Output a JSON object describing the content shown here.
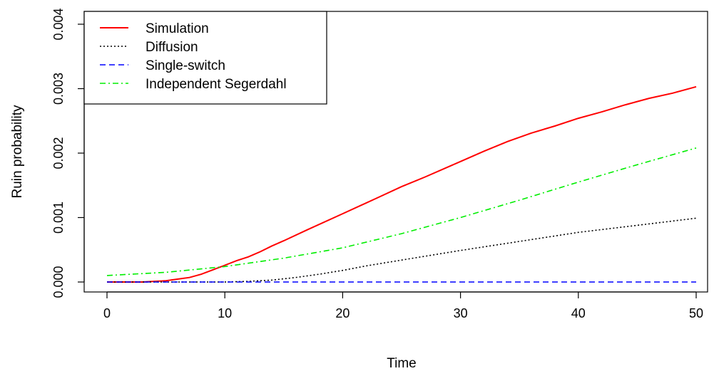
{
  "chart_data": {
    "type": "line",
    "title": "",
    "xlabel": "Time",
    "ylabel": "Ruin probability",
    "xlim": [
      0,
      50
    ],
    "ylim": [
      0,
      0.004
    ],
    "xticks": [
      0,
      10,
      20,
      30,
      40,
      50
    ],
    "xtick_labels": [
      "0",
      "10",
      "20",
      "30",
      "40",
      "50"
    ],
    "yticks": [
      0,
      0.001,
      0.002,
      0.003,
      0.004
    ],
    "ytick_labels": [
      "0.000",
      "0.001",
      "0.002",
      "0.003",
      "0.004"
    ],
    "grid": false,
    "legend_position": "top-left",
    "series": [
      {
        "name": "Simulation",
        "color": "#ff0000",
        "dash": "solid",
        "x": [
          0,
          3,
          5,
          7,
          8,
          9,
          10,
          11,
          12,
          13,
          14,
          15,
          17,
          20,
          23,
          25,
          27,
          30,
          32,
          34,
          36,
          38,
          40,
          42,
          44,
          46,
          48,
          50
        ],
        "y": [
          0,
          0,
          2e-05,
          7e-05,
          0.00012,
          0.00019,
          0.00026,
          0.00033,
          0.00039,
          0.00047,
          0.00056,
          0.00064,
          0.00081,
          0.00106,
          0.00131,
          0.00148,
          0.00163,
          0.00187,
          0.00203,
          0.00218,
          0.00231,
          0.00242,
          0.00254,
          0.00264,
          0.00275,
          0.00285,
          0.00293,
          0.00303
        ]
      },
      {
        "name": "Diffusion",
        "color": "#000000",
        "dash": "dotted",
        "x": [
          0,
          10,
          12,
          14,
          16,
          18,
          20,
          22,
          25,
          28,
          30,
          35,
          40,
          45,
          50
        ],
        "y": [
          0,
          0,
          1e-05,
          3e-05,
          7e-05,
          0.00012,
          0.00018,
          0.00025,
          0.00034,
          0.00043,
          0.00049,
          0.00063,
          0.00077,
          0.00088,
          0.00099
        ]
      },
      {
        "name": "Single-switch",
        "color": "#0000ff",
        "dash": "dashed",
        "x": [
          0,
          10,
          20,
          30,
          40,
          50
        ],
        "y": [
          0,
          0,
          0,
          0,
          0,
          0
        ]
      },
      {
        "name": "Independent Segerdahl",
        "color": "#00ee00",
        "dash": "dashdot",
        "x": [
          0,
          5,
          10,
          15,
          20,
          25,
          30,
          35,
          40,
          45,
          50
        ],
        "y": [
          0.0001,
          0.00015,
          0.00024,
          0.00037,
          0.00053,
          0.00075,
          0.001,
          0.00127,
          0.00155,
          0.00182,
          0.00208
        ]
      }
    ]
  }
}
